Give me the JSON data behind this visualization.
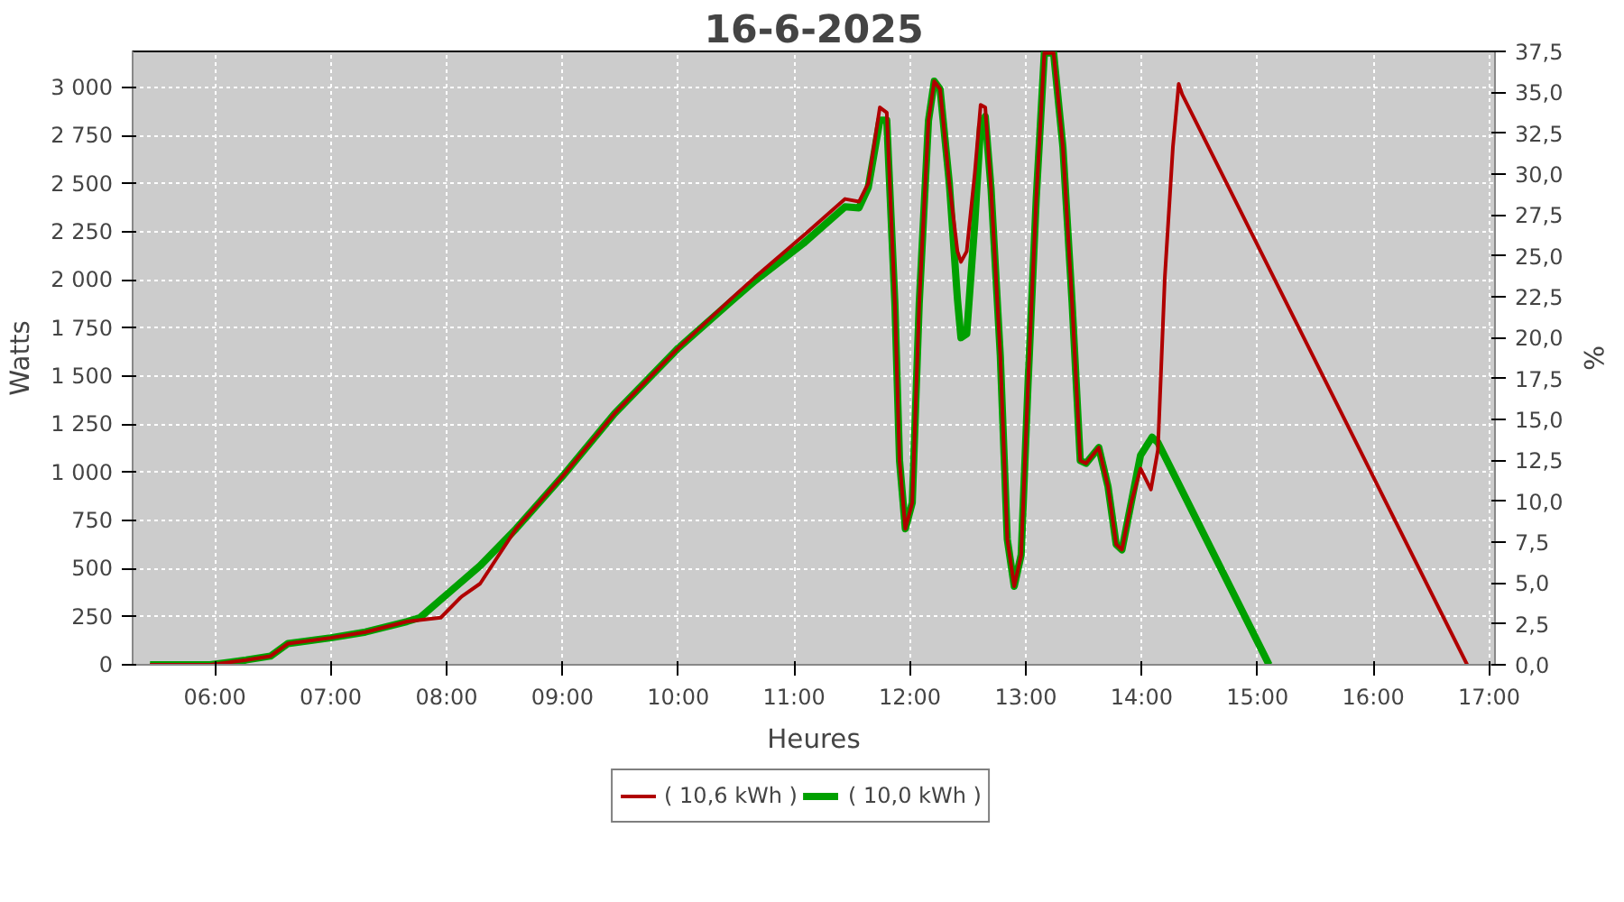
{
  "chart_data": {
    "type": "line",
    "title": "16-6-2025",
    "xlabel": "Heures",
    "ylabel": "Watts",
    "y2label": "%",
    "xlim": [
      5.29,
      17.05
    ],
    "ylim": [
      0,
      3188
    ],
    "y2lim": [
      0,
      37.5
    ],
    "xticks": [
      {
        "value": 6,
        "label": "06:00"
      },
      {
        "value": 7,
        "label": "07:00"
      },
      {
        "value": 8,
        "label": "08:00"
      },
      {
        "value": 9,
        "label": "09:00"
      },
      {
        "value": 10,
        "label": "10:00"
      },
      {
        "value": 11,
        "label": "11:00"
      },
      {
        "value": 12,
        "label": "12:00"
      },
      {
        "value": 13,
        "label": "13:00"
      },
      {
        "value": 14,
        "label": "14:00"
      },
      {
        "value": 15,
        "label": "15:00"
      },
      {
        "value": 16,
        "label": "16:00"
      },
      {
        "value": 17,
        "label": "17:00"
      }
    ],
    "yticks": [
      0,
      250,
      500,
      750,
      {
        "value": 1000,
        "label": "1 000"
      },
      {
        "value": 1250,
        "label": "1 250"
      },
      {
        "value": 1500,
        "label": "1 500"
      },
      {
        "value": 1750,
        "label": "1 750"
      },
      {
        "value": 2000,
        "label": "2 000"
      },
      {
        "value": 2250,
        "label": "2 250"
      },
      {
        "value": 2500,
        "label": "2 500"
      },
      {
        "value": 2750,
        "label": "2 750"
      },
      {
        "value": 3000,
        "label": "3 000"
      }
    ],
    "y2ticks": [
      {
        "value": 0,
        "label": "0,0"
      },
      {
        "value": 2.5,
        "label": "2,5"
      },
      {
        "value": 5,
        "label": "5,0"
      },
      {
        "value": 7.5,
        "label": "7,5"
      },
      {
        "value": 10,
        "label": "10,0"
      },
      {
        "value": 12.5,
        "label": "12,5"
      },
      {
        "value": 15,
        "label": "15,0"
      },
      {
        "value": 17.5,
        "label": "17,5"
      },
      {
        "value": 20,
        "label": "20,0"
      },
      {
        "value": 22.5,
        "label": "22,5"
      },
      {
        "value": 25,
        "label": "25,0"
      },
      {
        "value": 27.5,
        "label": "27,5"
      },
      {
        "value": 30,
        "label": "30,0"
      },
      {
        "value": 32.5,
        "label": "32,5"
      },
      {
        "value": 35,
        "label": "35,0"
      },
      {
        "value": 37.5,
        "label": "37,5"
      }
    ],
    "grid": true,
    "legend": "bottom",
    "marker": "none",
    "line_style": "solid",
    "series": [
      {
        "name": "( 10,6 kWh )",
        "color": "#b00000",
        "x": [
          5.44,
          5.96,
          6.27,
          6.48,
          6.63,
          7.0,
          7.3,
          7.66,
          7.95,
          8.13,
          8.29,
          8.6,
          9.0,
          9.45,
          10.0,
          10.46,
          10.66,
          11.08,
          11.44,
          11.56,
          11.64,
          11.74,
          11.8,
          11.87,
          11.91,
          11.96,
          12.02,
          12.08,
          12.16,
          12.21,
          12.26,
          12.34,
          12.41,
          12.44,
          12.49,
          12.56,
          12.61,
          12.65,
          12.7,
          12.78,
          12.84,
          12.9,
          12.96,
          13.02,
          13.09,
          13.16,
          13.24,
          13.32,
          13.4,
          13.47,
          13.52,
          13.63,
          13.71,
          13.78,
          13.83,
          13.91,
          13.99,
          14.08,
          14.14,
          14.2,
          14.27,
          14.32,
          14.35,
          16.81
        ],
        "values": [
          0,
          0,
          25,
          45,
          110,
          140,
          170,
          225,
          245,
          355,
          422,
          707,
          979,
          1306,
          1646,
          1904,
          2013,
          2230,
          2421,
          2407,
          2502,
          2897,
          2870,
          1877,
          1061,
          707,
          843,
          1877,
          2829,
          3033,
          2992,
          2502,
          2149,
          2094,
          2149,
          2557,
          2910,
          2897,
          2475,
          1605,
          653,
          408,
          571,
          1469,
          2421,
          3180,
          3180,
          2693,
          1877,
          1061,
          1047,
          1129,
          925,
          626,
          598,
          843,
          1020,
          911,
          1115,
          2013,
          2693,
          3019,
          2965,
          0
        ]
      },
      {
        "name": "( 10,0 kWh )",
        "color": "#00a000",
        "x": [
          5.44,
          5.96,
          6.27,
          6.48,
          6.63,
          7.0,
          7.3,
          7.66,
          7.77,
          8.29,
          8.6,
          9.0,
          9.45,
          10.0,
          10.46,
          10.66,
          11.08,
          11.44,
          11.56,
          11.64,
          11.74,
          11.8,
          11.87,
          11.91,
          11.96,
          12.02,
          12.08,
          12.16,
          12.21,
          12.26,
          12.34,
          12.41,
          12.44,
          12.49,
          12.56,
          12.61,
          12.65,
          12.7,
          12.78,
          12.84,
          12.9,
          12.96,
          13.02,
          13.09,
          13.16,
          13.24,
          13.32,
          13.4,
          13.47,
          13.52,
          13.63,
          13.71,
          13.78,
          13.83,
          13.91,
          13.99,
          14.09,
          14.14,
          15.1
        ],
        "values": [
          0,
          0,
          25,
          45,
          110,
          140,
          170,
          225,
          245,
          515,
          707,
          979,
          1306,
          1646,
          1890,
          1995,
          2190,
          2380,
          2375,
          2480,
          2830,
          2830,
          1877,
          1061,
          707,
          843,
          1877,
          2829,
          3033,
          2992,
          2502,
          1900,
          1700,
          1720,
          2300,
          2800,
          2850,
          2475,
          1605,
          653,
          408,
          571,
          1469,
          2421,
          3180,
          3180,
          2693,
          1877,
          1061,
          1047,
          1129,
          925,
          626,
          598,
          843,
          1088,
          1183,
          1156,
          0
        ]
      }
    ]
  }
}
